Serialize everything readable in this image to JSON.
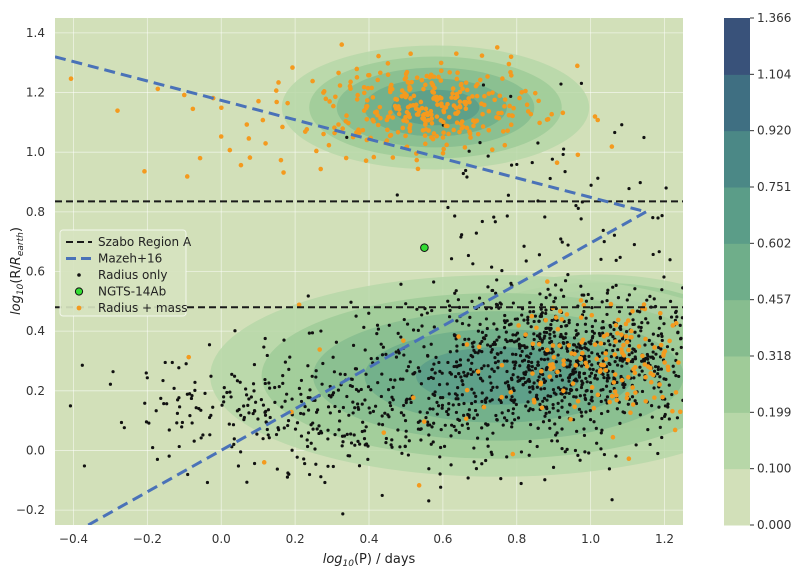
{
  "chart_data": {
    "type": "scatter",
    "xlabel": "log10(P) / days",
    "ylabel": "log10(R/Rearth)",
    "xlim": [
      -0.45,
      1.25
    ],
    "ylim": [
      -0.25,
      1.45
    ],
    "x_ticks": [
      "−0.4",
      "−0.2",
      "0.0",
      "0.2",
      "0.4",
      "0.6",
      "0.8",
      "1.0",
      "1.2"
    ],
    "y_ticks": [
      "−0.2",
      "0.0",
      "0.2",
      "0.4",
      "0.6",
      "0.8",
      "1.0",
      "1.2",
      "1.4"
    ],
    "grid": true,
    "legend_position": "left",
    "background_color": "#d2e0b9",
    "lines": [
      {
        "name": "Szabo Region A",
        "style": "dashed",
        "color": "#1a1a1a",
        "points": [
          [
            -0.45,
            0.835
          ],
          [
            1.25,
            0.835
          ]
        ]
      },
      {
        "name": "Szabo Region A",
        "style": "dashed",
        "color": "#1a1a1a",
        "points": [
          [
            -0.45,
            0.48
          ],
          [
            1.25,
            0.48
          ]
        ]
      },
      {
        "name": "Mazeh+16",
        "style": "dashed",
        "color": "#4a72b8",
        "points": [
          [
            -0.45,
            1.32
          ],
          [
            1.15,
            0.8
          ]
        ]
      },
      {
        "name": "Mazeh+16",
        "style": "dashed",
        "color": "#4a72b8",
        "points": [
          [
            -0.36,
            -0.25
          ],
          [
            1.15,
            0.8
          ]
        ]
      }
    ],
    "highlight": {
      "name": "NGTS-14Ab",
      "x": 0.55,
      "y": 0.68,
      "color": "#33dd33"
    },
    "scatter_series": [
      {
        "name": "Radius only",
        "color": "#111111",
        "clusters": [
          {
            "cx": 0.95,
            "cy": 0.3,
            "sx": 0.22,
            "sy": 0.12,
            "n": 900
          },
          {
            "cx": 0.55,
            "cy": 0.15,
            "sx": 0.28,
            "sy": 0.13,
            "n": 350
          },
          {
            "cx": 0.1,
            "cy": 0.12,
            "sx": 0.22,
            "sy": 0.1,
            "n": 160
          },
          {
            "cx": 0.9,
            "cy": 0.75,
            "sx": 0.25,
            "sy": 0.2,
            "n": 90
          }
        ]
      },
      {
        "name": "Radius + mass",
        "color": "#f49a1e",
        "clusters": [
          {
            "cx": 0.58,
            "cy": 1.15,
            "sx": 0.14,
            "sy": 0.07,
            "n": 260
          },
          {
            "cx": 0.35,
            "cy": 1.12,
            "sx": 0.32,
            "sy": 0.1,
            "n": 80
          },
          {
            "cx": 1.05,
            "cy": 0.33,
            "sx": 0.15,
            "sy": 0.1,
            "n": 150
          },
          {
            "cx": 0.6,
            "cy": 0.2,
            "sx": 0.35,
            "sy": 0.18,
            "n": 30
          }
        ]
      }
    ],
    "density_peaks": [
      {
        "cx": 0.58,
        "cy": 1.15,
        "sx": 0.16,
        "sy": 0.08,
        "level": 5
      },
      {
        "cx": 1.02,
        "cy": 0.33,
        "sx": 0.18,
        "sy": 0.1,
        "level": 9
      },
      {
        "cx": 0.75,
        "cy": 0.25,
        "sx": 0.3,
        "sy": 0.13,
        "level": 5
      }
    ],
    "colorbar": {
      "labels": [
        "0.000",
        "0.100",
        "0.199",
        "0.318",
        "0.457",
        "0.602",
        "0.751",
        "0.920",
        "1.104",
        "1.366"
      ],
      "colors": [
        "#d2e0b9",
        "#b7d7a8",
        "#9fcb98",
        "#87bd8f",
        "#6fae8a",
        "#5b9d88",
        "#4b8886",
        "#3f6f82",
        "#39527a",
        "#33385f"
      ]
    }
  },
  "legend": [
    {
      "label": "Szabo Region A",
      "kind": "dash-black"
    },
    {
      "label": "Mazeh+16",
      "kind": "dash-blue"
    },
    {
      "label": "Radius only",
      "kind": "dot-black"
    },
    {
      "label": "NGTS-14Ab",
      "kind": "dot-green"
    },
    {
      "label": "Radius + mass",
      "kind": "dot-orange"
    }
  ]
}
